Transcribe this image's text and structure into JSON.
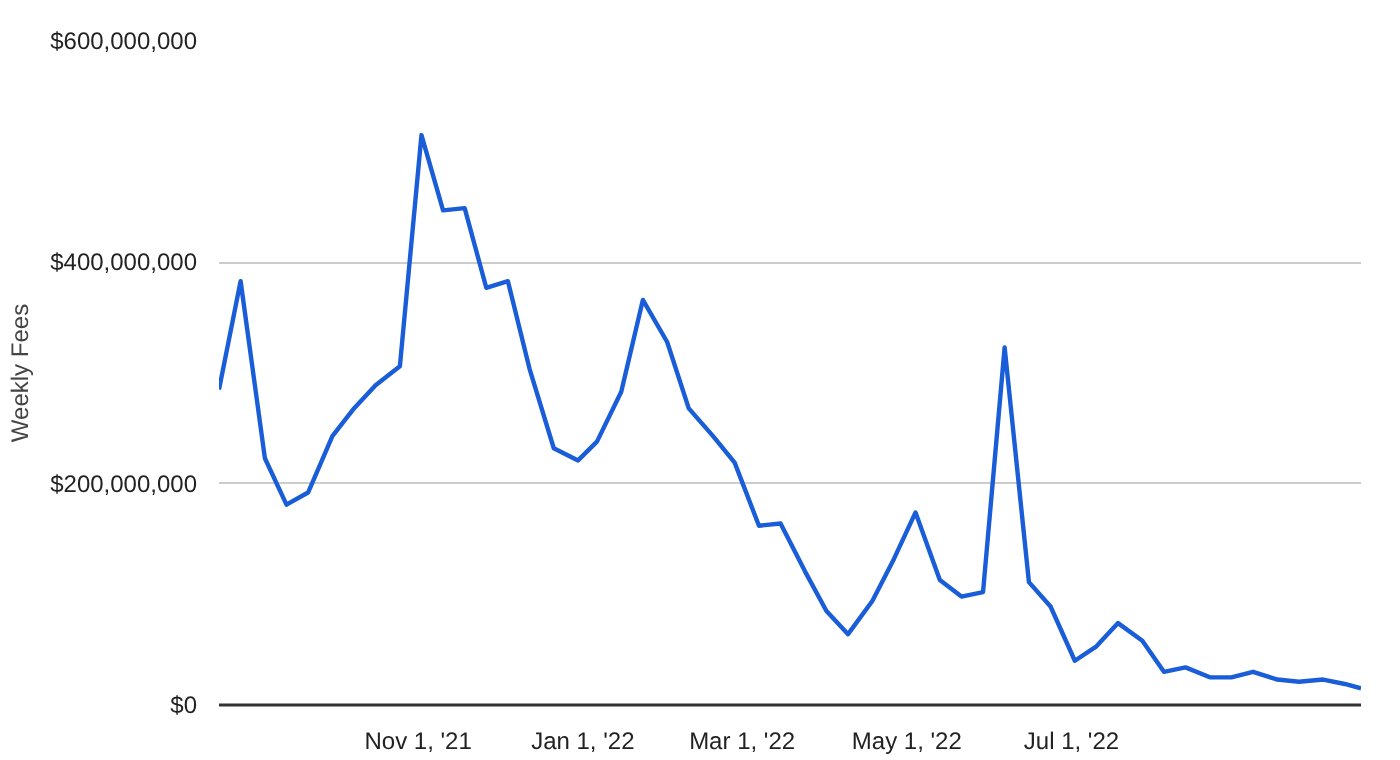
{
  "chart_data": {
    "type": "line",
    "ylabel": "Weekly Fees",
    "x": [
      "2021-08-18",
      "2021-08-26",
      "2021-09-04",
      "2021-09-12",
      "2021-09-20",
      "2021-09-29",
      "2021-10-07",
      "2021-10-15",
      "2021-10-24",
      "2021-11-01",
      "2021-11-09",
      "2021-11-17",
      "2021-11-25",
      "2021-12-03",
      "2021-12-11",
      "2021-12-20",
      "2021-12-29",
      "2022-01-05",
      "2022-01-14",
      "2022-01-22",
      "2022-01-31",
      "2022-02-08",
      "2022-02-17",
      "2022-02-25",
      "2022-03-06",
      "2022-03-14",
      "2022-03-23",
      "2022-03-31",
      "2022-04-08",
      "2022-04-17",
      "2022-04-25",
      "2022-05-03",
      "2022-05-12",
      "2022-05-20",
      "2022-05-28",
      "2022-06-05",
      "2022-06-14",
      "2022-06-22",
      "2022-07-01",
      "2022-07-09",
      "2022-07-17",
      "2022-07-26",
      "2022-08-03",
      "2022-08-11",
      "2022-08-20",
      "2022-08-28",
      "2022-09-05",
      "2022-09-14",
      "2022-09-22",
      "2022-10-01",
      "2022-10-09",
      "2022-10-15"
    ],
    "series": [
      {
        "color": "#1a5dd8",
        "values": [
          285000000,
          383000000,
          223000000,
          181000000,
          192000000,
          243000000,
          268000000,
          289000000,
          306000000,
          515000000,
          447000000,
          449000000,
          377000000,
          383000000,
          304000000,
          232000000,
          221000000,
          238000000,
          283000000,
          366000000,
          328000000,
          268000000,
          243000000,
          219000000,
          162000000,
          164000000,
          121000000,
          85000000,
          64000000,
          94000000,
          132000000,
          174000000,
          113000000,
          98000000,
          102000000,
          323000000,
          111000000,
          89000000,
          40000000,
          53000000,
          74000000,
          58000000,
          30000000,
          34000000,
          25000000,
          25000000,
          30000000,
          23000000,
          21000000,
          23000000,
          19000000,
          15000000
        ]
      }
    ],
    "xlim": [
      "2021-08-18",
      "2022-10-15"
    ],
    "xticks": [
      {
        "value": "2021-11-01",
        "label": "Nov 1,  '21"
      },
      {
        "value": "2022-01-01",
        "label": "Jan 1,  '22"
      },
      {
        "value": "2022-03-01",
        "label": "Mar 1,  '22"
      },
      {
        "value": "2022-05-01",
        "label": "May 1,  '22"
      },
      {
        "value": "2022-07-01",
        "label": "Jul 1,  '22"
      }
    ],
    "ylim": [
      0,
      600000000
    ],
    "yticks": [
      {
        "value": 0,
        "label": "$0"
      },
      {
        "value": 200000000,
        "label": "$200,000,000"
      },
      {
        "value": 400000000,
        "label": "$400,000,000"
      },
      {
        "value": 600000000,
        "label": "$600,000,000"
      }
    ],
    "grid": "y",
    "marker": "none",
    "line_style": "solid"
  }
}
